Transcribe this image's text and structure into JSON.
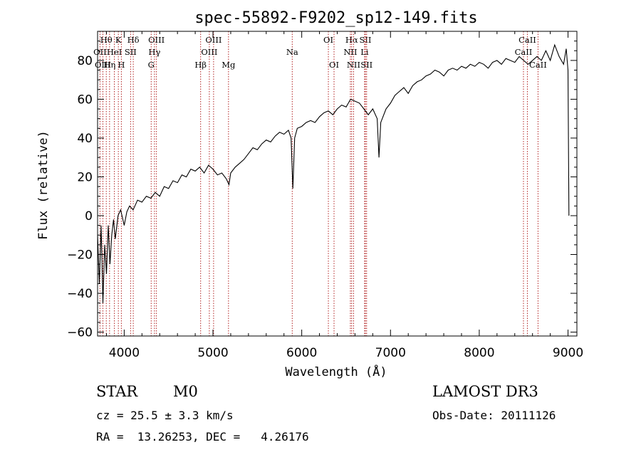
{
  "chart_data": {
    "type": "line",
    "title": "spec-55892-F9202_sp12-149.fits",
    "xlabel": "Wavelength (Å)",
    "ylabel": "Flux (relative)",
    "xlim": [
      3700,
      9100
    ],
    "ylim": [
      -62,
      95
    ],
    "xticks": [
      4000,
      5000,
      6000,
      7000,
      8000,
      9000
    ],
    "yticks": [
      -60,
      -40,
      -20,
      0,
      20,
      40,
      60,
      80
    ],
    "series": [
      {
        "name": "flux",
        "color": "#000000",
        "points": [
          [
            3700,
            -10
          ],
          [
            3720,
            -35
          ],
          [
            3740,
            -5
          ],
          [
            3760,
            -45
          ],
          [
            3780,
            -15
          ],
          [
            3800,
            -30
          ],
          [
            3820,
            -5
          ],
          [
            3840,
            -25
          ],
          [
            3860,
            -10
          ],
          [
            3880,
            -2
          ],
          [
            3900,
            -12
          ],
          [
            3930,
            0
          ],
          [
            3960,
            3
          ],
          [
            4000,
            -5
          ],
          [
            4030,
            2
          ],
          [
            4060,
            5
          ],
          [
            4100,
            3
          ],
          [
            4150,
            8
          ],
          [
            4200,
            7
          ],
          [
            4250,
            10
          ],
          [
            4300,
            9
          ],
          [
            4350,
            12
          ],
          [
            4400,
            10
          ],
          [
            4450,
            15
          ],
          [
            4500,
            14
          ],
          [
            4550,
            18
          ],
          [
            4600,
            17
          ],
          [
            4650,
            21
          ],
          [
            4700,
            20
          ],
          [
            4750,
            24
          ],
          [
            4800,
            23
          ],
          [
            4850,
            25
          ],
          [
            4900,
            22
          ],
          [
            4950,
            26
          ],
          [
            5000,
            24
          ],
          [
            5050,
            21
          ],
          [
            5100,
            22
          ],
          [
            5150,
            19
          ],
          [
            5180,
            16
          ],
          [
            5200,
            22
          ],
          [
            5250,
            25
          ],
          [
            5300,
            27
          ],
          [
            5350,
            29
          ],
          [
            5400,
            32
          ],
          [
            5450,
            35
          ],
          [
            5500,
            34
          ],
          [
            5550,
            37
          ],
          [
            5600,
            39
          ],
          [
            5650,
            38
          ],
          [
            5700,
            41
          ],
          [
            5750,
            43
          ],
          [
            5800,
            42
          ],
          [
            5850,
            44
          ],
          [
            5880,
            40
          ],
          [
            5900,
            14
          ],
          [
            5920,
            40
          ],
          [
            5950,
            45
          ],
          [
            6000,
            46
          ],
          [
            6050,
            48
          ],
          [
            6100,
            49
          ],
          [
            6150,
            48
          ],
          [
            6200,
            51
          ],
          [
            6250,
            53
          ],
          [
            6300,
            54
          ],
          [
            6350,
            52
          ],
          [
            6400,
            55
          ],
          [
            6450,
            57
          ],
          [
            6500,
            56
          ],
          [
            6550,
            60
          ],
          [
            6600,
            59
          ],
          [
            6650,
            58
          ],
          [
            6700,
            55
          ],
          [
            6750,
            52
          ],
          [
            6800,
            55
          ],
          [
            6850,
            50
          ],
          [
            6870,
            30
          ],
          [
            6890,
            48
          ],
          [
            6950,
            55
          ],
          [
            7000,
            58
          ],
          [
            7050,
            62
          ],
          [
            7100,
            64
          ],
          [
            7150,
            66
          ],
          [
            7200,
            63
          ],
          [
            7250,
            67
          ],
          [
            7300,
            69
          ],
          [
            7350,
            70
          ],
          [
            7400,
            72
          ],
          [
            7450,
            73
          ],
          [
            7500,
            75
          ],
          [
            7550,
            74
          ],
          [
            7600,
            72
          ],
          [
            7650,
            75
          ],
          [
            7700,
            76
          ],
          [
            7750,
            75
          ],
          [
            7800,
            77
          ],
          [
            7850,
            76
          ],
          [
            7900,
            78
          ],
          [
            7950,
            77
          ],
          [
            8000,
            79
          ],
          [
            8050,
            78
          ],
          [
            8100,
            76
          ],
          [
            8150,
            79
          ],
          [
            8200,
            80
          ],
          [
            8250,
            78
          ],
          [
            8300,
            81
          ],
          [
            8350,
            80
          ],
          [
            8400,
            79
          ],
          [
            8450,
            82
          ],
          [
            8500,
            80
          ],
          [
            8550,
            78
          ],
          [
            8600,
            80
          ],
          [
            8650,
            82
          ],
          [
            8700,
            80
          ],
          [
            8750,
            85
          ],
          [
            8800,
            80
          ],
          [
            8850,
            88
          ],
          [
            8900,
            82
          ],
          [
            8950,
            78
          ],
          [
            8980,
            86
          ],
          [
            9000,
            75
          ],
          [
            9010,
            0
          ]
        ]
      }
    ],
    "lines": [
      {
        "label": "Hθ",
        "x": 3798,
        "row": 0
      },
      {
        "label": "OII",
        "x": 3727,
        "row": 1
      },
      {
        "label": "OIII",
        "x": 3760,
        "row": 2
      },
      {
        "label": "K",
        "x": 3934,
        "row": 0
      },
      {
        "label": "HeI",
        "x": 3889,
        "row": 1
      },
      {
        "label": "Hη",
        "x": 3835,
        "row": 2
      },
      {
        "label": "SII",
        "x": 4072,
        "row": 1
      },
      {
        "label": "H",
        "x": 3968,
        "row": 2
      },
      {
        "label": "Hδ",
        "x": 4102,
        "row": 0
      },
      {
        "label": "OIII",
        "x": 4363,
        "row": 0
      },
      {
        "label": "Hγ",
        "x": 4341,
        "row": 1
      },
      {
        "label": "G",
        "x": 4304,
        "row": 2
      },
      {
        "label": "Hβ",
        "x": 4861,
        "row": 2
      },
      {
        "label": "OIII",
        "x": 5007,
        "row": 0
      },
      {
        "label": "OIII",
        "x": 4959,
        "row": 1
      },
      {
        "label": "Mg",
        "x": 5175,
        "row": 2
      },
      {
        "label": "Na",
        "x": 5893,
        "row": 1
      },
      {
        "label": "OI",
        "x": 6300,
        "row": 0
      },
      {
        "label": "OI",
        "x": 6364,
        "row": 2
      },
      {
        "label": "Hα",
        "x": 6563,
        "row": 0
      },
      {
        "label": "NII",
        "x": 6548,
        "row": 1
      },
      {
        "label": "NII",
        "x": 6584,
        "row": 2
      },
      {
        "label": "SII",
        "x": 6717,
        "row": 0
      },
      {
        "label": "Li",
        "x": 6708,
        "row": 1
      },
      {
        "label": "SII",
        "x": 6731,
        "row": 2
      },
      {
        "label": "CaII",
        "x": 8542,
        "row": 0
      },
      {
        "label": "CaII",
        "x": 8498,
        "row": 1
      },
      {
        "label": "CaII",
        "x": 8662,
        "row": 2
      }
    ]
  },
  "info": {
    "class": "STAR",
    "subclass": "M0",
    "survey": "LAMOST DR3",
    "cz": "cz = 25.5 ± 3.3 km/s",
    "obs_date": "Obs-Date: 20111126",
    "coords": "RA =  13.26253, DEC =   4.26176"
  }
}
